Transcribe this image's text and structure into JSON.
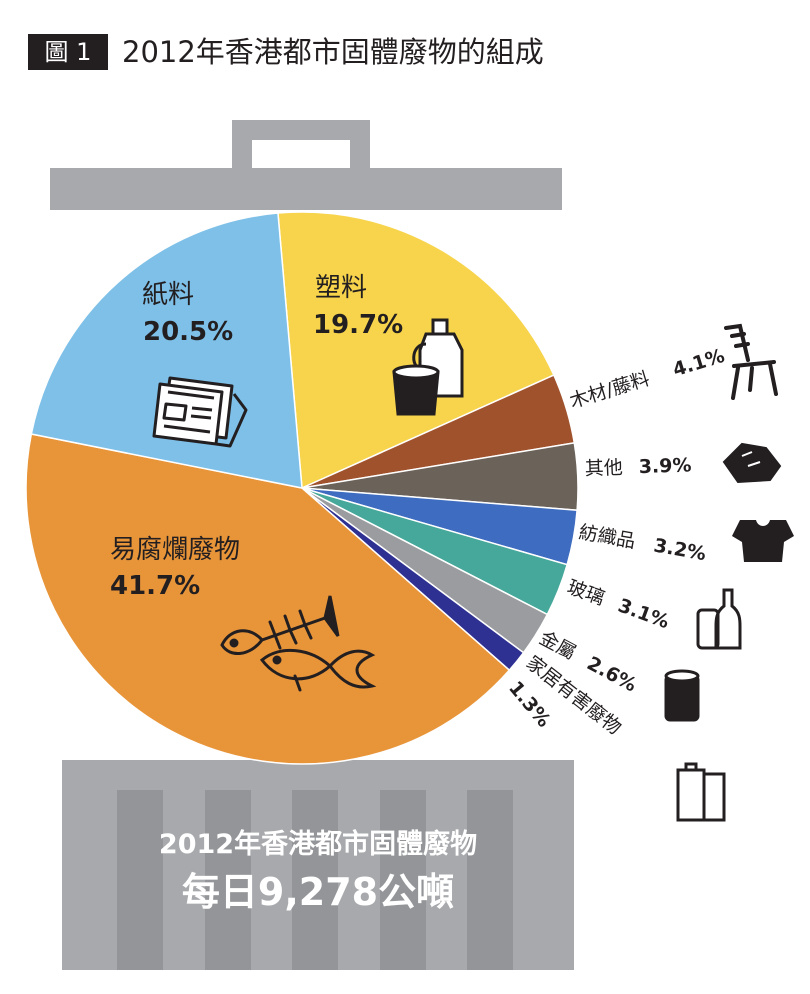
{
  "figure": {
    "label": "圖 1",
    "title": "2012年香港都市固體廢物的組成"
  },
  "bin": {
    "line1": "2012年香港都市固體廢物",
    "line2": "每日9,278公噸"
  },
  "colors": {
    "lid": "#a7a9ac",
    "bin_body": "#a7a9ac",
    "bin_stripe": "#939598"
  },
  "chart_data": {
    "type": "pie",
    "unit": "%",
    "slices": [
      {
        "name": "塑料",
        "value": 19.7,
        "label": "19.7%",
        "color": "#f7d44c",
        "icon": "plastic-bottle-cup-icon"
      },
      {
        "name": "木材/藤料",
        "value": 4.1,
        "label": "4.1%",
        "color": "#a0522d",
        "icon": "chair-icon"
      },
      {
        "name": "其他",
        "value": 3.9,
        "label": "3.9%",
        "color": "#6b625a",
        "icon": "rubble-icon"
      },
      {
        "name": "紡織品",
        "value": 3.2,
        "label": "3.2%",
        "color": "#3d6cc0",
        "icon": "tshirt-icon"
      },
      {
        "name": "玻璃",
        "value": 3.1,
        "label": "3.1%",
        "color": "#46a89a",
        "icon": "glass-bottle-icon"
      },
      {
        "name": "金屬",
        "value": 2.6,
        "label": "2.6%",
        "color": "#9a9c9f",
        "icon": "tin-can-icon"
      },
      {
        "name": "家居有害廢物",
        "value": 1.3,
        "label": "1.3%",
        "color": "#2e3192",
        "icon": "battery-icon"
      },
      {
        "name": "易腐爛廢物",
        "value": 41.7,
        "label": "41.7%",
        "color": "#e8953a",
        "icon": "fish-bones-icon"
      },
      {
        "name": "紙料",
        "value": 20.5,
        "label": "20.5%",
        "color": "#7ec0e8",
        "icon": "newspaper-icon"
      }
    ]
  }
}
